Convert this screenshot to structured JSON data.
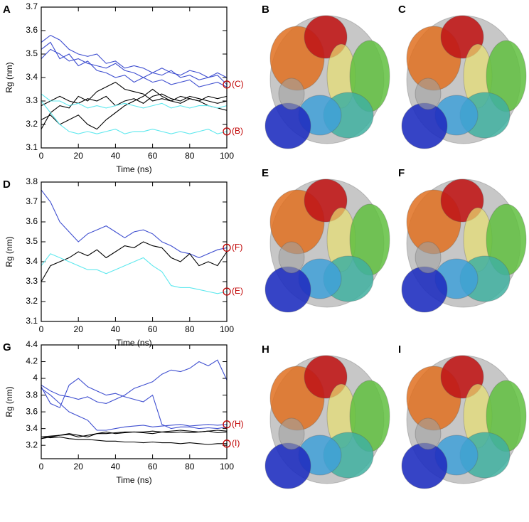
{
  "chart_data": [
    {
      "type": "line",
      "panel": "A",
      "x_label": "Time (ns)",
      "y_label": "Rg (nm)",
      "xlim": [
        0,
        100
      ],
      "xticks": [
        0,
        20,
        40,
        60,
        80,
        100
      ],
      "ylim": [
        3.1,
        3.7
      ],
      "yticks": [
        3.1,
        3.2,
        3.3,
        3.4,
        3.5,
        3.6,
        3.7
      ],
      "x": [
        0,
        5,
        10,
        15,
        20,
        25,
        30,
        35,
        40,
        45,
        50,
        55,
        60,
        65,
        70,
        75,
        80,
        85,
        90,
        95,
        100
      ],
      "series": [
        {
          "color": "#3f4fd0",
          "values": [
            3.55,
            3.58,
            3.56,
            3.52,
            3.5,
            3.49,
            3.5,
            3.46,
            3.47,
            3.44,
            3.45,
            3.44,
            3.42,
            3.44,
            3.42,
            3.41,
            3.43,
            3.42,
            3.4,
            3.41,
            3.37
          ]
        },
        {
          "color": "#3f4fd0",
          "values": [
            3.48,
            3.52,
            3.5,
            3.47,
            3.48,
            3.46,
            3.45,
            3.44,
            3.46,
            3.43,
            3.42,
            3.4,
            3.42,
            3.41,
            3.43,
            3.4,
            3.41,
            3.39,
            3.4,
            3.42,
            3.4
          ]
        },
        {
          "color": "#3f4fd0",
          "values": [
            3.52,
            3.55,
            3.48,
            3.5,
            3.45,
            3.47,
            3.43,
            3.42,
            3.4,
            3.41,
            3.38,
            3.4,
            3.38,
            3.39,
            3.37,
            3.38,
            3.39,
            3.36,
            3.37,
            3.38,
            3.36
          ]
        },
        {
          "color": "#000000",
          "values": [
            3.18,
            3.25,
            3.28,
            3.27,
            3.32,
            3.3,
            3.34,
            3.36,
            3.38,
            3.35,
            3.34,
            3.33,
            3.3,
            3.31,
            3.3,
            3.32,
            3.31,
            3.3,
            3.32,
            3.31,
            3.32
          ]
        },
        {
          "color": "#000000",
          "values": [
            3.28,
            3.3,
            3.32,
            3.3,
            3.29,
            3.31,
            3.3,
            3.32,
            3.28,
            3.3,
            3.31,
            3.29,
            3.32,
            3.33,
            3.31,
            3.3,
            3.32,
            3.31,
            3.3,
            3.29,
            3.3
          ]
        },
        {
          "color": "#000000",
          "values": [
            3.22,
            3.24,
            3.2,
            3.22,
            3.24,
            3.2,
            3.18,
            3.22,
            3.25,
            3.28,
            3.3,
            3.32,
            3.35,
            3.32,
            3.3,
            3.29,
            3.31,
            3.3,
            3.28,
            3.27,
            3.26
          ]
        },
        {
          "color": "#5ee8ee",
          "values": [
            3.33,
            3.3,
            3.3,
            3.28,
            3.29,
            3.27,
            3.28,
            3.27,
            3.28,
            3.29,
            3.28,
            3.27,
            3.28,
            3.29,
            3.27,
            3.28,
            3.27,
            3.28,
            3.28,
            3.27,
            3.28
          ]
        },
        {
          "color": "#5ee8ee",
          "values": [
            3.3,
            3.25,
            3.2,
            3.17,
            3.16,
            3.17,
            3.16,
            3.17,
            3.18,
            3.16,
            3.17,
            3.17,
            3.18,
            3.17,
            3.16,
            3.17,
            3.16,
            3.17,
            3.18,
            3.16,
            3.17
          ]
        }
      ],
      "annotations": [
        {
          "text": "(C)",
          "x": 100,
          "y": 3.37
        },
        {
          "text": "(B)",
          "x": 100,
          "y": 3.17
        }
      ]
    },
    {
      "type": "line",
      "panel": "D",
      "x_label": "Time (ns)",
      "y_label": "Rg (nm)",
      "xlim": [
        0,
        100
      ],
      "xticks": [
        0,
        20,
        40,
        60,
        80,
        100
      ],
      "ylim": [
        3.1,
        3.8
      ],
      "yticks": [
        3.1,
        3.2,
        3.3,
        3.4,
        3.5,
        3.6,
        3.7,
        3.8
      ],
      "x": [
        0,
        5,
        10,
        15,
        20,
        25,
        30,
        35,
        40,
        45,
        50,
        55,
        60,
        65,
        70,
        75,
        80,
        85,
        90,
        95,
        100
      ],
      "series": [
        {
          "color": "#3f4fd0",
          "values": [
            3.76,
            3.7,
            3.6,
            3.55,
            3.5,
            3.54,
            3.56,
            3.58,
            3.55,
            3.52,
            3.55,
            3.56,
            3.54,
            3.5,
            3.48,
            3.45,
            3.44,
            3.42,
            3.44,
            3.46,
            3.47
          ]
        },
        {
          "color": "#000000",
          "values": [
            3.3,
            3.38,
            3.4,
            3.42,
            3.45,
            3.43,
            3.46,
            3.42,
            3.45,
            3.48,
            3.47,
            3.5,
            3.48,
            3.47,
            3.42,
            3.4,
            3.44,
            3.38,
            3.4,
            3.38,
            3.45
          ]
        },
        {
          "color": "#5ee8ee",
          "values": [
            3.38,
            3.44,
            3.42,
            3.4,
            3.38,
            3.36,
            3.36,
            3.34,
            3.36,
            3.38,
            3.4,
            3.42,
            3.38,
            3.35,
            3.28,
            3.27,
            3.27,
            3.26,
            3.25,
            3.24,
            3.25
          ]
        }
      ],
      "annotations": [
        {
          "text": "(F)",
          "x": 100,
          "y": 3.47
        },
        {
          "text": "(E)",
          "x": 100,
          "y": 3.25
        }
      ]
    },
    {
      "type": "line",
      "panel": "G",
      "x_label": "Time (ns)",
      "y_label": "Rg (nm)",
      "xlim": [
        0,
        100
      ],
      "xticks": [
        0,
        20,
        40,
        60,
        80,
        100
      ],
      "ylim": [
        3.04,
        4.4
      ],
      "yticks": [
        3.2,
        3.4,
        3.6,
        3.8,
        4.0,
        4.2,
        4.4
      ],
      "x": [
        0,
        5,
        10,
        15,
        20,
        25,
        30,
        35,
        40,
        45,
        50,
        55,
        60,
        65,
        70,
        75,
        80,
        85,
        90,
        95,
        100
      ],
      "series": [
        {
          "color": "#3f4fd0",
          "values": [
            3.92,
            3.85,
            3.8,
            3.78,
            3.75,
            3.78,
            3.72,
            3.7,
            3.75,
            3.8,
            3.88,
            3.92,
            3.96,
            4.05,
            4.1,
            4.08,
            4.12,
            4.2,
            4.15,
            4.22,
            3.98
          ]
        },
        {
          "color": "#3f4fd0",
          "values": [
            3.9,
            3.7,
            3.65,
            3.92,
            4.0,
            3.9,
            3.85,
            3.8,
            3.82,
            3.78,
            3.75,
            3.72,
            3.8,
            3.45,
            3.4,
            3.42,
            3.42,
            3.4,
            3.41,
            3.4,
            3.42
          ]
        },
        {
          "color": "#3f4fd0",
          "values": [
            3.88,
            3.8,
            3.7,
            3.6,
            3.55,
            3.5,
            3.38,
            3.38,
            3.4,
            3.42,
            3.43,
            3.44,
            3.42,
            3.43,
            3.44,
            3.45,
            3.43,
            3.44,
            3.45,
            3.44,
            3.45
          ]
        },
        {
          "color": "#000000",
          "values": [
            3.3,
            3.31,
            3.32,
            3.33,
            3.3,
            3.32,
            3.34,
            3.34,
            3.35,
            3.36,
            3.36,
            3.36,
            3.37,
            3.36,
            3.37,
            3.38,
            3.37,
            3.36,
            3.37,
            3.38,
            3.37
          ]
        },
        {
          "color": "#000000",
          "values": [
            3.28,
            3.3,
            3.32,
            3.34,
            3.32,
            3.3,
            3.34,
            3.36,
            3.34,
            3.35,
            3.36,
            3.35,
            3.34,
            3.36,
            3.35,
            3.36,
            3.35,
            3.36,
            3.37,
            3.35,
            3.36
          ]
        },
        {
          "color": "#000000",
          "values": [
            3.3,
            3.29,
            3.3,
            3.28,
            3.27,
            3.27,
            3.26,
            3.25,
            3.25,
            3.24,
            3.24,
            3.23,
            3.24,
            3.23,
            3.23,
            3.22,
            3.23,
            3.22,
            3.21,
            3.22,
            3.22
          ]
        }
      ],
      "annotations": [
        {
          "text": "(H)",
          "x": 100,
          "y": 3.45
        },
        {
          "text": "(I)",
          "x": 100,
          "y": 3.22
        }
      ]
    }
  ],
  "structure_panels": [
    "B",
    "C",
    "E",
    "F",
    "H",
    "I"
  ]
}
